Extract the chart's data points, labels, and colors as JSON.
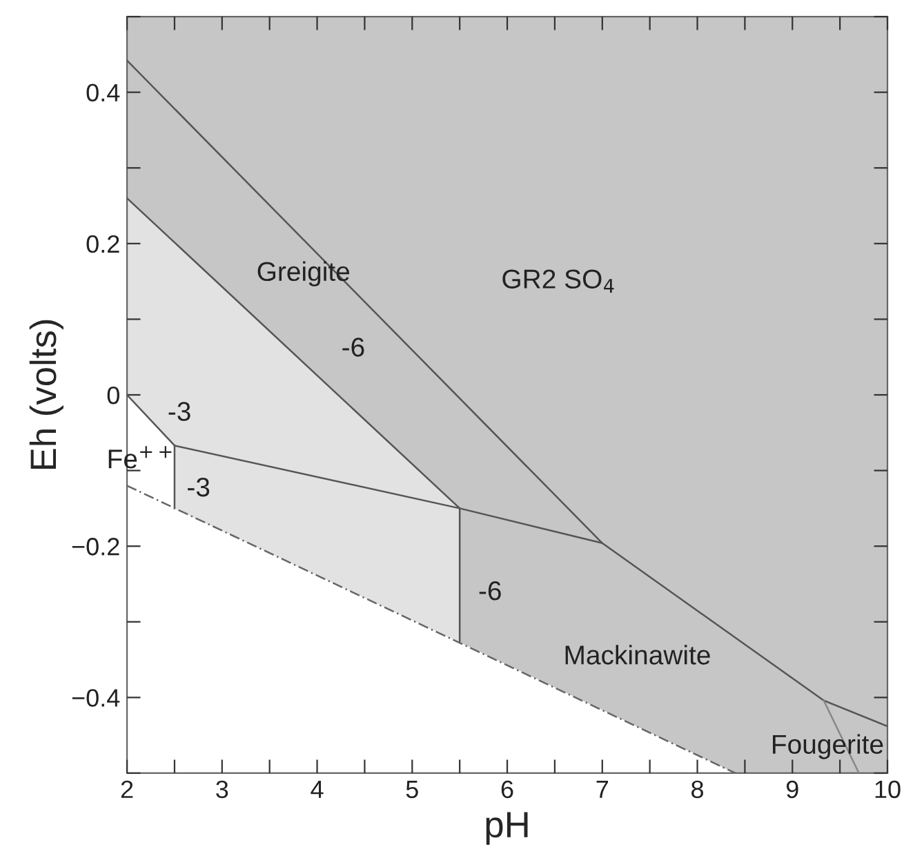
{
  "chart_data": {
    "type": "line",
    "xlabel": "pH",
    "ylabel": "Eh (volts)",
    "xlim": [
      2,
      10
    ],
    "ylim": [
      -0.5,
      0.5
    ],
    "xticks": [
      2,
      {
        "value": 2.5,
        "label": null
      },
      3,
      {
        "value": 3.5,
        "label": null
      },
      4,
      {
        "value": 4.5,
        "label": null
      },
      5,
      {
        "value": 5.5,
        "label": null
      },
      6,
      {
        "value": 6.5,
        "label": null
      },
      7,
      {
        "value": 7.5,
        "label": null
      },
      8,
      {
        "value": 8.5,
        "label": null
      },
      9,
      {
        "value": 9.5,
        "label": null
      },
      10
    ],
    "yticks": [
      {
        "value": -0.5,
        "label": null
      },
      {
        "value": -0.4,
        "label": "−0.4"
      },
      {
        "value": -0.3,
        "label": null
      },
      {
        "value": -0.2,
        "label": "−0.2"
      },
      {
        "value": -0.1,
        "label": null
      },
      0,
      {
        "value": 0.1,
        "label": null
      },
      0.2,
      {
        "value": 0.3,
        "label": null
      },
      0.4,
      {
        "value": 0.5,
        "label": null
      }
    ],
    "series": [
      {
        "color": "#555555",
        "x": [
          2,
          7,
          9.33,
          10
        ],
        "values": [
          0.442,
          -0.196,
          -0.404,
          -0.438
        ]
      },
      {
        "color": "#555555",
        "x": [
          2,
          5.5
        ],
        "values": [
          0.26,
          -0.15
        ]
      },
      {
        "color": "#555555",
        "x": [
          2.5,
          5.5,
          7
        ],
        "values": [
          -0.067,
          -0.15,
          -0.196
        ]
      },
      {
        "color": "#555555",
        "x": [
          2,
          2.5,
          2.5
        ],
        "values": [
          0,
          -0.067,
          -0.15
        ]
      },
      {
        "color": "#555555",
        "x": [
          5.5,
          5.5
        ],
        "values": [
          -0.15,
          -0.327
        ]
      },
      {
        "color": "#888888",
        "x": [
          9.33,
          9.7
        ],
        "values": [
          -0.404,
          -0.5
        ]
      },
      {
        "color": "#666666",
        "line_style": "dashed",
        "x": [
          2,
          8.4
        ],
        "values": [
          -0.12,
          -0.5
        ]
      }
    ],
    "annotations": [
      "GR2 SO$_{4}$",
      "Greigite",
      "-6",
      "-3",
      "Fe$^{++}$",
      "-3",
      "-6",
      "Mackinawite",
      "Fougerite"
    ]
  }
}
